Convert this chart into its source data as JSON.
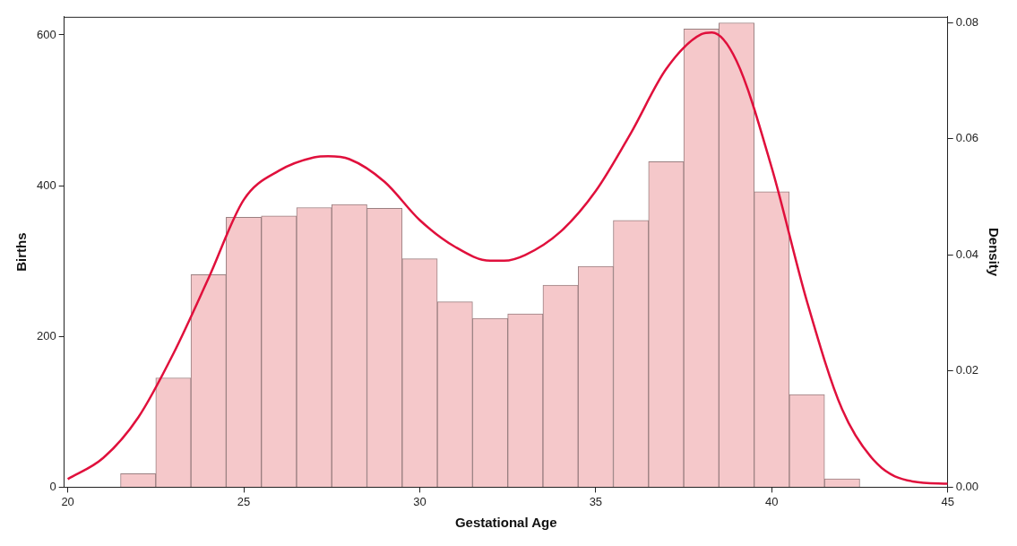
{
  "chart_data": {
    "type": "histogram",
    "xlabel": "Gestational Age",
    "ylabel": "Births",
    "y2label": "Density",
    "bins": [
      21.5,
      22.5,
      23.5,
      24.5,
      25.5,
      26.5,
      27.5,
      28.5,
      29.5,
      30.5,
      31.5,
      32.5,
      33.5,
      34.5,
      35.5,
      36.5,
      37.5,
      38.5,
      39.5,
      40.5,
      41.5,
      42.5
    ],
    "values": [
      18,
      145,
      282,
      358,
      360,
      371,
      375,
      370,
      303,
      246,
      224,
      230,
      268,
      293,
      354,
      432,
      608,
      616,
      392,
      123,
      11
    ],
    "color": "#f5c8ca",
    "series": [
      {
        "type": "line",
        "axis": "y2",
        "color": "#e0103c",
        "x": [
          20,
          21,
          22,
          23,
          24,
          25,
          26,
          27,
          27.4,
          28,
          29,
          30,
          31,
          32,
          32.4,
          33,
          34,
          35,
          36,
          37,
          38,
          38.3,
          39,
          40,
          41,
          42,
          43,
          44,
          45
        ],
        "values": [
          0.0014,
          0.005,
          0.012,
          0.023,
          0.036,
          0.0495,
          0.0545,
          0.0568,
          0.057,
          0.0565,
          0.0526,
          0.046,
          0.0414,
          0.039,
          0.039,
          0.04,
          0.044,
          0.051,
          0.061,
          0.072,
          0.078,
          0.0783,
          0.0734,
          0.055,
          0.032,
          0.0134,
          0.004,
          0.001,
          0.0006
        ]
      }
    ],
    "xlim": [
      19.9,
      45
    ],
    "xticks": [
      20,
      25,
      30,
      35,
      40,
      45
    ],
    "ylim": [
      0,
      624
    ],
    "yticks": [
      0,
      200,
      400,
      600
    ],
    "y2lim": [
      0,
      0.081
    ],
    "y2ticks": [
      {
        "value": 0,
        "label": "0.00"
      },
      {
        "value": 0.02,
        "label": "0.02"
      },
      {
        "value": 0.04,
        "label": "0.04"
      },
      {
        "value": 0.06,
        "label": "0.06"
      },
      {
        "value": 0.08,
        "label": "0.08"
      }
    ],
    "grid": false,
    "legend": false,
    "marker": "none",
    "line_style": "solid"
  }
}
